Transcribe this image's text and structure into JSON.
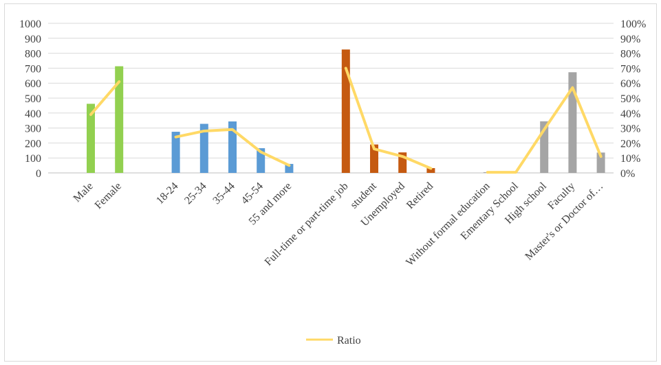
{
  "chart_data": {
    "type": "bar",
    "categories": [
      "Male",
      "Female",
      "18-24",
      "25-34",
      "35-44",
      "45-54",
      "55 and more",
      "Full-time or part-time job",
      "student",
      "Unemployed",
      "Retired",
      "Without formal education",
      "Ementary School",
      "High school",
      "Faculty",
      "Master's or Doctor of…"
    ],
    "groups": [
      {
        "color": "#92d050",
        "categories": [
          "Male",
          "Female"
        ]
      },
      {
        "color": "#5b9bd5",
        "categories": [
          "18-24",
          "25-34",
          "35-44",
          "45-54",
          "55 and more"
        ]
      },
      {
        "color": "#c55a11",
        "categories": [
          "Full-time or part-time job",
          "student",
          "Unemployed",
          "Retired"
        ]
      },
      {
        "color": "#a5a5a5",
        "categories": [
          "Without formal education",
          "Ementary School",
          "High school",
          "Faculty",
          "Master's or Doctor of…"
        ]
      }
    ],
    "series": [
      {
        "type": "bar",
        "axis": "left",
        "values": [
          462,
          713,
          275,
          328,
          344,
          165,
          60,
          825,
          190,
          137,
          32,
          5,
          2,
          345,
          673,
          136
        ]
      },
      {
        "name": "Ratio",
        "type": "line",
        "axis": "right",
        "color": "#ffd966",
        "segments": [
          {
            "categories": [
              "Male",
              "Female"
            ],
            "values": [
              0.39,
              0.61
            ]
          },
          {
            "categories": [
              "18-24",
              "25-34",
              "35-44",
              "45-54",
              "55 and more"
            ],
            "values": [
              0.24,
              0.28,
              0.29,
              0.14,
              0.05
            ]
          },
          {
            "categories": [
              "Full-time or part-time job",
              "student",
              "Unemployed",
              "Retired"
            ],
            "values": [
              0.7,
              0.16,
              0.11,
              0.03
            ]
          },
          {
            "categories": [
              "Without formal education",
              "Ementary School",
              "High school",
              "Faculty",
              "Master's or Doctor of…"
            ],
            "values": [
              0.004,
              0.004,
              0.29,
              0.57,
              0.11
            ]
          }
        ]
      }
    ],
    "y_left": {
      "min": 0,
      "max": 1000,
      "ticks": [
        "0",
        "100",
        "200",
        "300",
        "400",
        "500",
        "600",
        "700",
        "800",
        "900",
        "1000"
      ]
    },
    "y_right": {
      "min": 0,
      "max": 1,
      "ticks": [
        "0%",
        "10%",
        "20%",
        "30%",
        "40%",
        "50%",
        "60%",
        "70%",
        "80%",
        "90%",
        "100%"
      ]
    },
    "grid": true,
    "legend": {
      "position": "bottom",
      "entries": [
        "Ratio"
      ]
    }
  }
}
